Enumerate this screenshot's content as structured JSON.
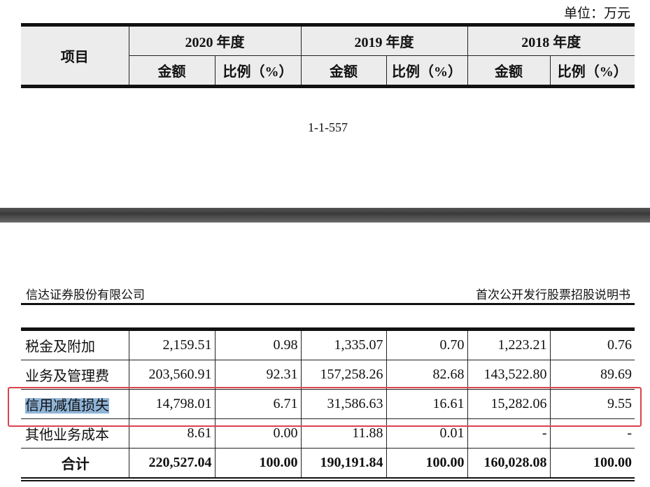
{
  "unit": "单位：万元",
  "header": {
    "item": "项目",
    "years": [
      "2020 年度",
      "2019 年度",
      "2018 年度"
    ],
    "amount": "金额",
    "ratio": "比例（%）"
  },
  "page_number": "1-1-557",
  "company": "信达证券股份有限公司",
  "doc_title": "首次公开发行股票招股说明书",
  "rows": [
    {
      "name": "税金及附加",
      "v": [
        "2,159.51",
        "0.98",
        "1,335.07",
        "0.70",
        "1,223.21",
        "0.76"
      ]
    },
    {
      "name": "业务及管理费",
      "v": [
        "203,560.91",
        "92.31",
        "157,258.26",
        "82.68",
        "143,522.80",
        "89.69"
      ]
    },
    {
      "name": "信用减值损失",
      "v": [
        "14,798.01",
        "6.71",
        "31,586.63",
        "16.61",
        "15,282.06",
        "9.55"
      ]
    },
    {
      "name": "其他业务成本",
      "v": [
        "8.61",
        "0.00",
        "11.88",
        "0.01",
        "-",
        "-"
      ]
    },
    {
      "name": "合计",
      "v": [
        "220,527.04",
        "100.00",
        "190,191.84",
        "100.00",
        "160,028.08",
        "100.00"
      ]
    }
  ],
  "highlight_color": "#d9434e"
}
